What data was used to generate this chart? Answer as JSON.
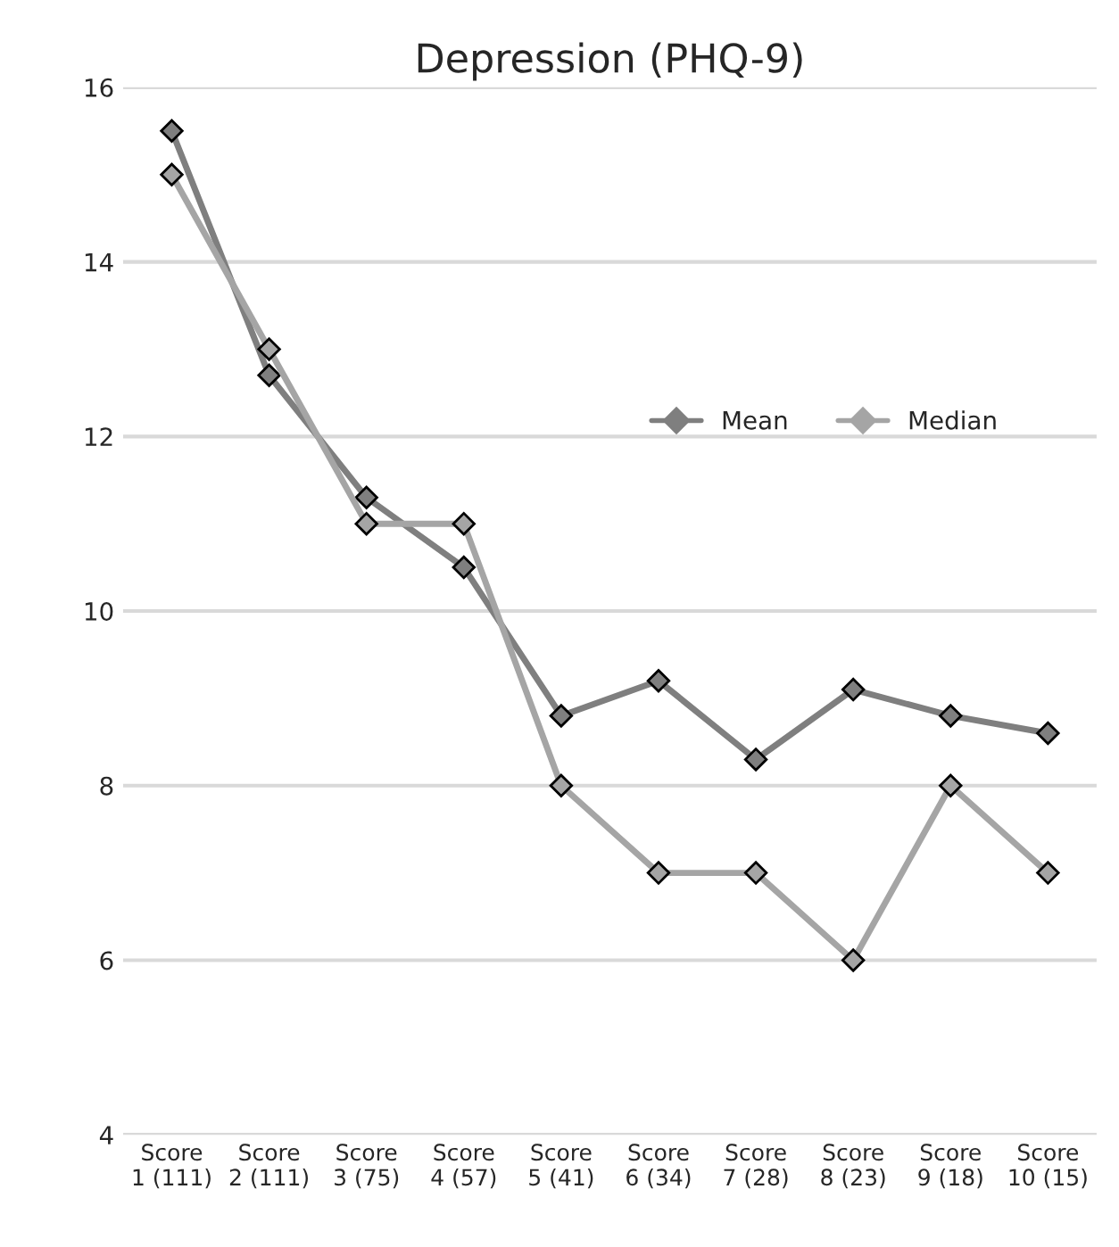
{
  "chart_data": {
    "type": "line",
    "title": "Depression (PHQ-9)",
    "categories": [
      "Score\n1 (111)",
      "Score\n2 (111)",
      "Score\n3 (75)",
      "Score\n4 (57)",
      "Score\n5 (41)",
      "Score\n6 (34)",
      "Score\n7 (28)",
      "Score\n8 (23)",
      "Score\n9 (18)",
      "Score\n10 (15)"
    ],
    "series": [
      {
        "name": "Mean",
        "color": "#7f7f7f",
        "values": [
          15.5,
          12.7,
          11.3,
          10.5,
          8.8,
          9.2,
          8.3,
          9.1,
          8.8,
          8.6
        ]
      },
      {
        "name": "Median",
        "color": "#a5a5a5",
        "values": [
          15,
          13,
          11,
          11,
          8,
          7,
          7,
          6,
          8,
          7
        ]
      }
    ],
    "ylim": [
      4,
      16
    ],
    "yticks": [
      4,
      6,
      8,
      10,
      12,
      14,
      16
    ],
    "grid": "y",
    "legend": "right",
    "marker": "diamond",
    "line_style": "solid"
  }
}
